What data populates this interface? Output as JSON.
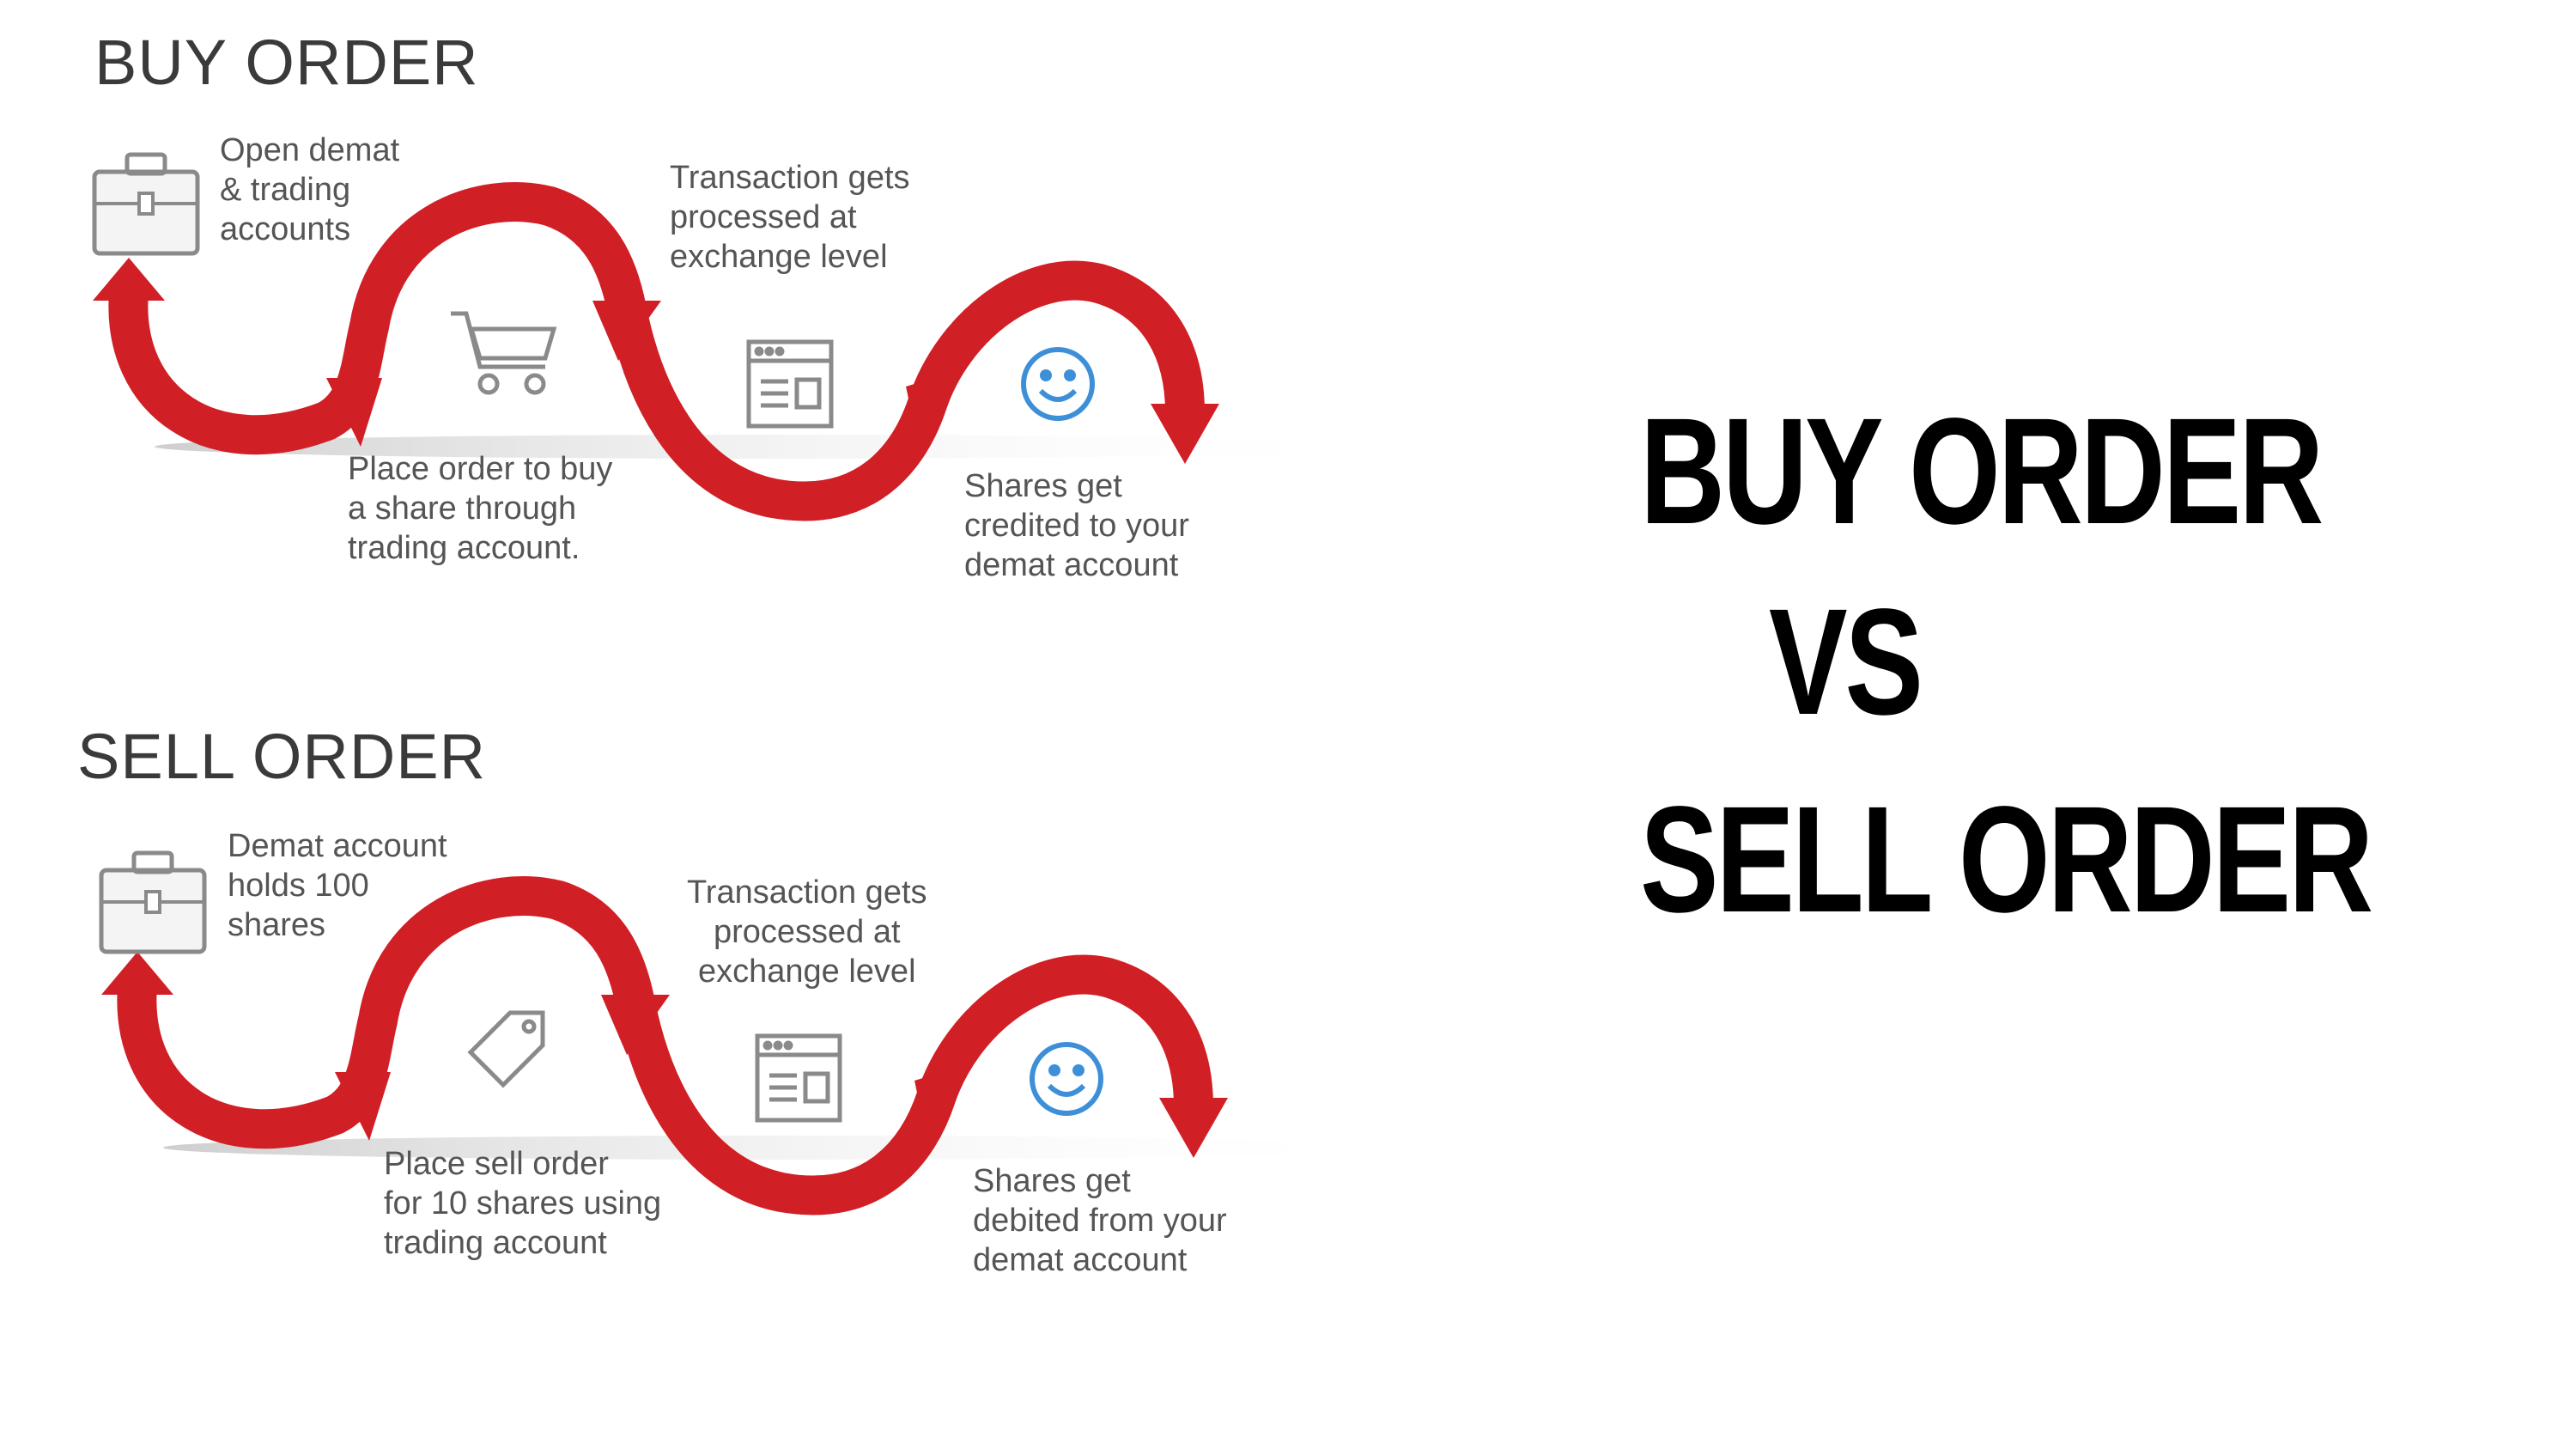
{
  "buy_panel": {
    "title": "BUY ORDER",
    "steps": [
      {
        "icon": "briefcase-icon",
        "text": "Open demat\n& trading\naccounts"
      },
      {
        "icon": "shopping-cart-icon",
        "text": "Place order to buy\na share through\ntrading account."
      },
      {
        "icon": "browser-window-icon",
        "text": "Transaction gets\nprocessed at\nexchange level"
      },
      {
        "icon": "smiley-face-icon",
        "text": "Shares get\ncredited to your\ndemat account"
      }
    ]
  },
  "sell_panel": {
    "title": "SELL ORDER",
    "steps": [
      {
        "icon": "briefcase-icon",
        "text": "Demat account\nholds 100\nshares"
      },
      {
        "icon": "price-tag-icon",
        "text": "Place sell order\nfor 10 shares using\ntrading account"
      },
      {
        "icon": "browser-window-icon",
        "text": "Transaction gets\nprocessed at\nexchange level"
      },
      {
        "icon": "smiley-face-icon",
        "text": "Shares get\ndebited from your\ndemat account"
      }
    ]
  },
  "headline": {
    "line1": "BUY ORDER",
    "line2": "VS",
    "line3": "SELL ORDER"
  },
  "colors": {
    "arrow_red": "#d11f26",
    "icon_gray": "#8a8a8a",
    "smiley_blue": "#3d8fd8"
  }
}
